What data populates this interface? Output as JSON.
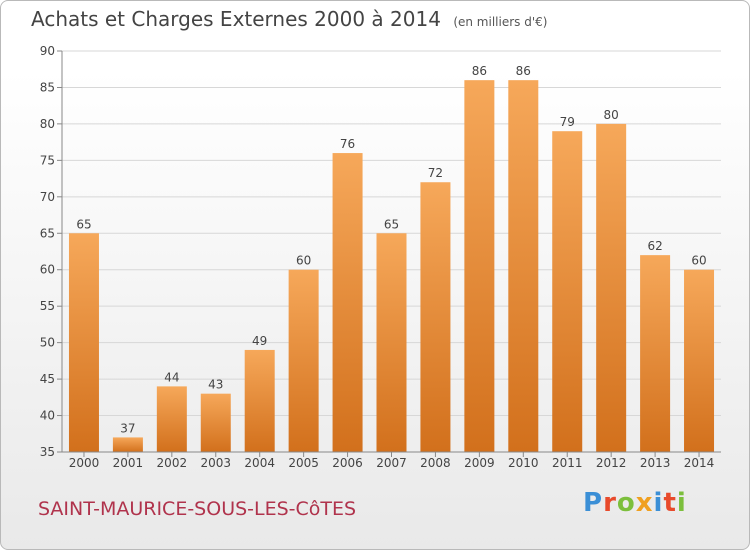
{
  "title": "Achats et Charges Externes 2000 à 2014",
  "unit": "(en milliers d'€)",
  "commune": "SAINT-MAURICE-SOUS-LES-CôTES",
  "logo": {
    "letters": [
      "P",
      "r",
      "o",
      "x",
      "i",
      "t",
      "i"
    ],
    "colors": [
      "#3b8fd6",
      "#e84a2b",
      "#7cbf3c",
      "#f0a020",
      "#3b8fd6",
      "#e84a2b",
      "#7cbf3c"
    ]
  },
  "colors": {
    "bar_light": "#f6a85a",
    "bar_dark": "#d2701c",
    "grid": "#d7d7d7",
    "axis": "#888888",
    "text": "#444444"
  },
  "chart_data": {
    "type": "bar",
    "categories": [
      "2000",
      "2001",
      "2002",
      "2003",
      "2004",
      "2005",
      "2006",
      "2007",
      "2008",
      "2009",
      "2010",
      "2011",
      "2012",
      "2013",
      "2014"
    ],
    "values": [
      65,
      37,
      44,
      43,
      49,
      60,
      76,
      65,
      72,
      86,
      86,
      79,
      80,
      62,
      60
    ],
    "data_labels": [
      "65",
      "37",
      "44",
      "43",
      "49",
      "60",
      "76",
      "65",
      "72",
      "86",
      "86",
      "79",
      "80",
      "62",
      "60"
    ],
    "yticks": [
      "35",
      "40",
      "45",
      "50",
      "55",
      "60",
      "65",
      "70",
      "75",
      "80",
      "85",
      "90"
    ],
    "ylim": [
      35,
      90
    ],
    "grid": true,
    "xlabel": "",
    "ylabel": ""
  }
}
